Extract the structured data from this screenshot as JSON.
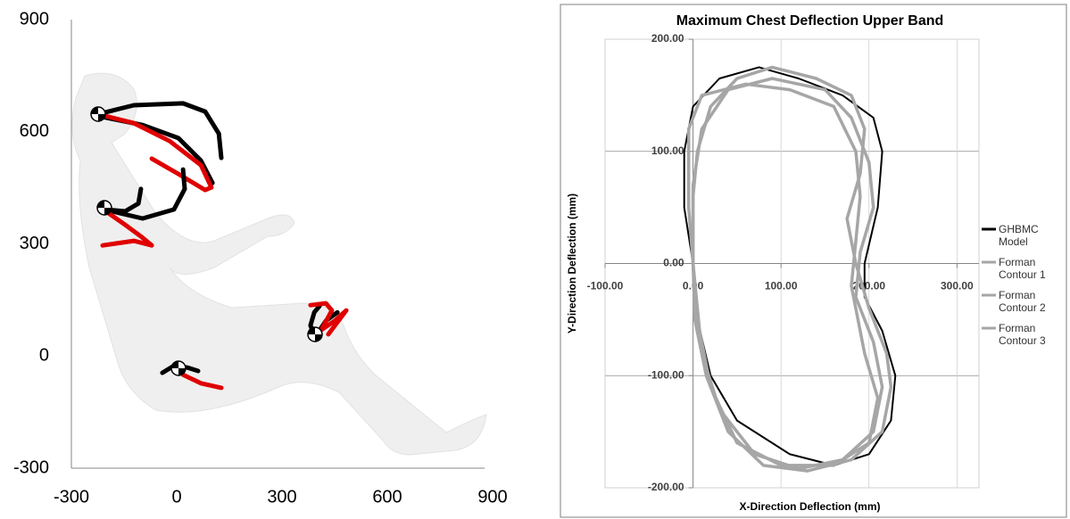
{
  "chart_data": [
    {
      "type": "line",
      "xlim": [
        -300,
        900
      ],
      "ylim": [
        -300,
        900
      ],
      "xticks": [
        -300,
        0,
        300,
        600,
        900
      ],
      "yticks": [
        -300,
        0,
        300,
        600,
        900
      ],
      "grid": false,
      "series": [
        {
          "color": "#000000",
          "x": [
            -224,
            -122,
            18,
            81,
            120,
            127
          ],
          "values": [
            647,
            671,
            676,
            654,
            595,
            530
          ]
        },
        {
          "color": "#000000",
          "x": [
            -224,
            -97,
            5,
            69,
            102
          ],
          "values": [
            642,
            618,
            583,
            523,
            463
          ]
        },
        {
          "color": "#e00000",
          "x": [
            -224,
            -122,
            -20,
            69,
            99,
            81,
            5,
            -71
          ],
          "values": [
            647,
            623,
            575,
            511,
            451,
            444,
            487,
            528
          ]
        },
        {
          "color": "#000000",
          "x": [
            -206,
            -147,
            -109,
            -102
          ],
          "values": [
            392,
            387,
            408,
            447
          ]
        },
        {
          "color": "#000000",
          "x": [
            -206,
            -97,
            -8,
            23,
            18
          ],
          "values": [
            392,
            368,
            392,
            447,
            499
          ]
        },
        {
          "color": "#e00000",
          "x": [
            -206,
            -147,
            -102,
            -71,
            -122,
            -211
          ],
          "values": [
            390,
            351,
            320,
            296,
            308,
            296
          ]
        },
        {
          "color": "#000000",
          "x": [
            394,
            381,
            392,
            407
          ],
          "values": [
            51,
            82,
            117,
            134
          ]
        },
        {
          "color": "#000000",
          "x": [
            394,
            425,
            458
          ],
          "values": [
            51,
            94,
            117
          ]
        },
        {
          "color": "#e00000",
          "x": [
            381,
            425,
            442,
            412,
            450,
            483,
            432
          ],
          "values": [
            136,
            141,
            122,
            70,
            94,
            122,
            58
          ]
        },
        {
          "color": "#000000",
          "x": [
            -41,
            -8,
            31,
            61
          ],
          "values": [
            -45,
            -26,
            -31,
            -40
          ]
        },
        {
          "color": "#e00000",
          "x": [
            18,
            69,
            127
          ],
          "values": [
            -50,
            -73,
            -85
          ]
        }
      ]
    },
    {
      "type": "line",
      "title": "Maximum Chest Deflection Upper Band",
      "x_label": "X-Direction Deflection (mm)",
      "y_label": "Y-Direction Deflection (mm)",
      "xlim": [
        -100,
        325
      ],
      "ylim": [
        -200,
        200
      ],
      "xticks": [
        {
          "value": -100,
          "label": "-100.00"
        },
        {
          "value": 0,
          "label": "0.00"
        },
        {
          "value": 100,
          "label": "100.00"
        },
        {
          "value": 200,
          "label": "200.00"
        },
        {
          "value": 300,
          "label": "300.00"
        }
      ],
      "yticks": [
        {
          "value": -200,
          "label": "-200.00"
        },
        {
          "value": -100,
          "label": "-100.00"
        },
        {
          "value": 0,
          "label": "0.00"
        },
        {
          "value": 100,
          "label": "100.00"
        },
        {
          "value": 200,
          "label": "200.00"
        }
      ],
      "grid": true,
      "legend": "right",
      "series": [
        {
          "name": "GHBMC Model",
          "color": "#000000",
          "x": [
            0,
            -10,
            -10,
            0,
            30,
            75,
            120,
            170,
            205,
            215,
            210,
            195,
            195,
            215,
            230,
            225,
            200,
            160,
            110,
            50,
            20,
            5,
            0
          ],
          "values": [
            0,
            50,
            100,
            140,
            165,
            175,
            165,
            150,
            130,
            100,
            50,
            0,
            -30,
            -60,
            -100,
            -140,
            -170,
            -180,
            -170,
            -140,
            -100,
            -50,
            0
          ]
        },
        {
          "name": "Forman Contour 1",
          "color": "#a6a6a6",
          "x": [
            0,
            0,
            5,
            20,
            50,
            90,
            140,
            180,
            195,
            190,
            175,
            185,
            200,
            220,
            225,
            215,
            180,
            130,
            80,
            40,
            15,
            2,
            0
          ],
          "values": [
            0,
            60,
            100,
            140,
            165,
            175,
            165,
            150,
            120,
            80,
            40,
            0,
            -40,
            -80,
            -110,
            -150,
            -175,
            -185,
            -180,
            -150,
            -100,
            -50,
            0
          ]
        },
        {
          "name": "Forman Contour 2",
          "color": "#a6a6a6",
          "x": [
            0,
            -5,
            -5,
            10,
            60,
            110,
            160,
            185,
            190,
            185,
            180,
            195,
            210,
            200,
            160,
            100,
            50,
            20,
            5,
            0
          ],
          "values": [
            0,
            50,
            120,
            150,
            160,
            155,
            140,
            100,
            60,
            20,
            -20,
            -80,
            -120,
            -160,
            -180,
            -180,
            -160,
            -110,
            -50,
            0
          ]
        },
        {
          "name": "Forman Contour 3",
          "color": "#a6a6a6",
          "x": [
            0,
            0,
            10,
            40,
            90,
            150,
            180,
            200,
            205,
            190,
            185,
            205,
            215,
            205,
            170,
            120,
            70,
            30,
            10,
            0
          ],
          "values": [
            0,
            70,
            120,
            155,
            165,
            155,
            130,
            90,
            50,
            10,
            -30,
            -70,
            -110,
            -150,
            -175,
            -183,
            -170,
            -130,
            -80,
            0
          ]
        }
      ]
    }
  ]
}
